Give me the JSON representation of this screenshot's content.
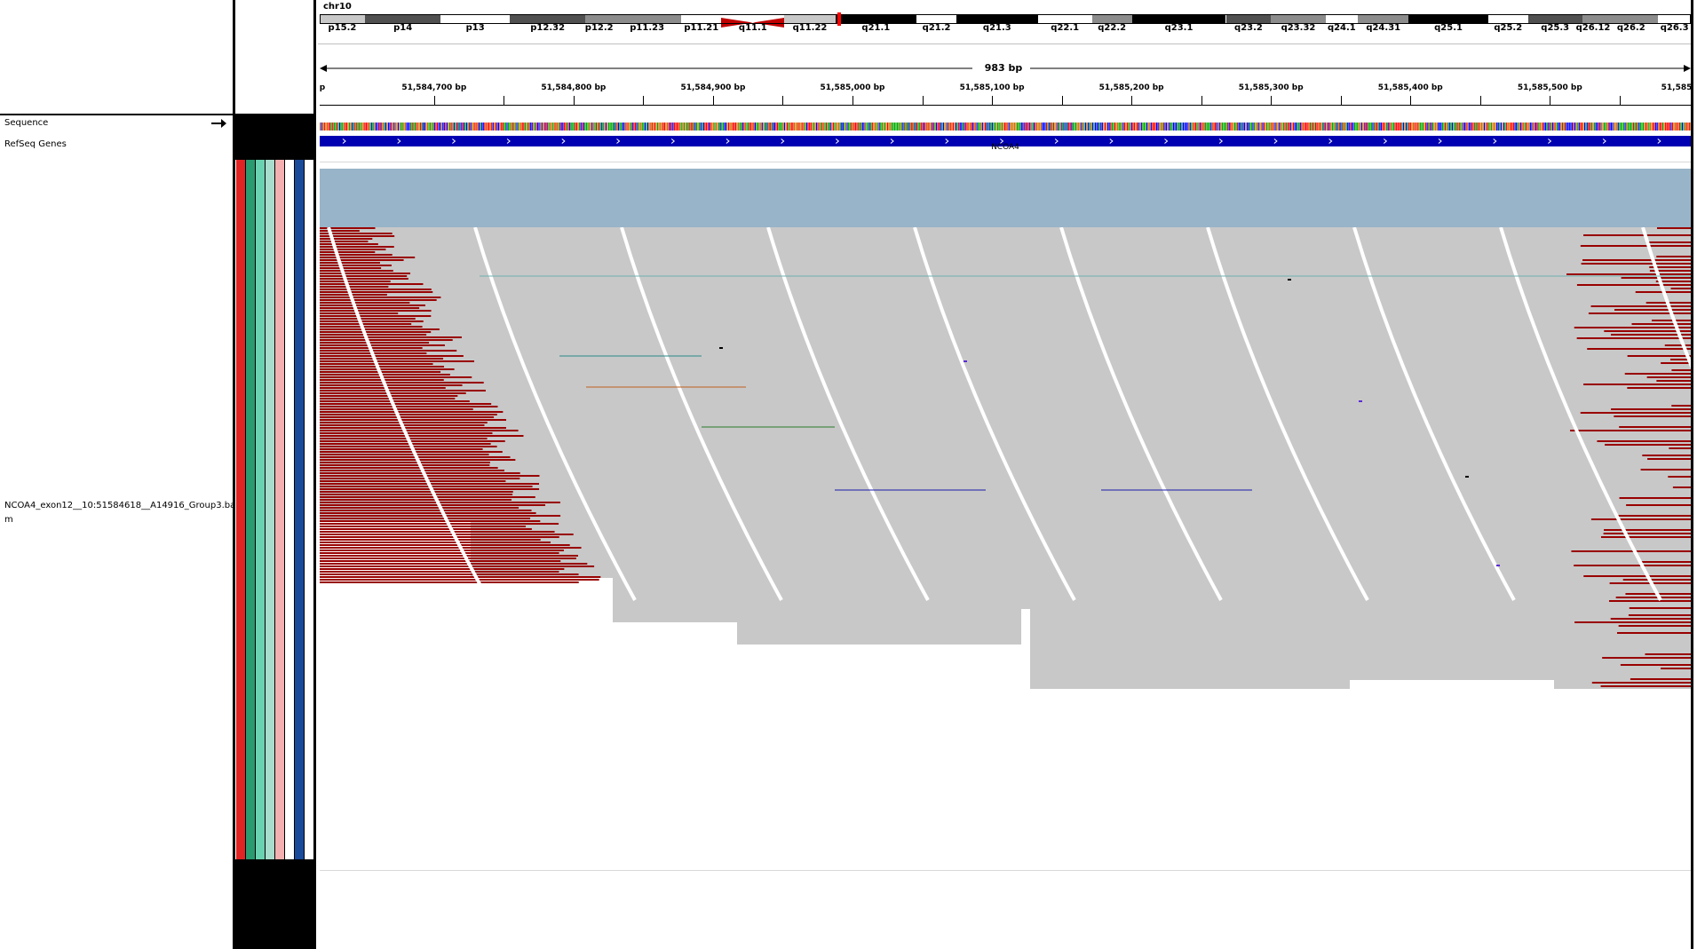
{
  "locus": {
    "chromosome": "chr10",
    "span_label": "983 bp",
    "ruler_start_label": "p",
    "ruler_end_label": "51,585",
    "ruler_ticks": [
      {
        "label": "51,584,700 bp",
        "pos": 51584700
      },
      {
        "label": "51,584,800 bp",
        "pos": 51584800
      },
      {
        "label": "51,584,900 bp",
        "pos": 51584900
      },
      {
        "label": "51,585,000 bp",
        "pos": 51585000
      },
      {
        "label": "51,585,100 bp",
        "pos": 51585100
      },
      {
        "label": "51,585,200 bp",
        "pos": 51585200
      },
      {
        "label": "51,585,300 bp",
        "pos": 51585300
      },
      {
        "label": "51,585,400 bp",
        "pos": 51585400
      },
      {
        "label": "51,585,500 bp",
        "pos": 51585500
      }
    ]
  },
  "ideogram": {
    "bands": [
      {
        "name": "p15.2",
        "stain": "gpos25",
        "show_label": true
      },
      {
        "name": "p14",
        "stain": "gpos75",
        "show_label": true
      },
      {
        "name": "p13",
        "stain": "gneg",
        "show_label": true
      },
      {
        "name": "p12.32",
        "stain": "gpos75",
        "show_label": true
      },
      {
        "name": "p12.2",
        "stain": "gpos50",
        "show_label": true
      },
      {
        "name": "p11.23",
        "stain": "gpos50",
        "show_label": true
      },
      {
        "name": "p11.21",
        "stain": "gneg",
        "show_label": true
      },
      {
        "name": "q11.1",
        "stain": "acen",
        "show_label": true
      },
      {
        "name": "q11.22",
        "stain": "gpos25",
        "show_label": true
      },
      {
        "name": "q21.1",
        "stain": "gpos100",
        "show_label": true
      },
      {
        "name": "q21.2",
        "stain": "gneg",
        "show_label": true
      },
      {
        "name": "q21.3",
        "stain": "gpos100",
        "show_label": true
      },
      {
        "name": "q22.1",
        "stain": "gneg",
        "show_label": true
      },
      {
        "name": "q22.2",
        "stain": "gpos50",
        "show_label": true
      },
      {
        "name": "q23.1",
        "stain": "gpos100",
        "show_label": true
      },
      {
        "name": "q23.2",
        "stain": "gpos75",
        "show_label": true
      },
      {
        "name": "q23.32",
        "stain": "gpos50",
        "show_label": true
      },
      {
        "name": "q24.1",
        "stain": "gneg",
        "show_label": true
      },
      {
        "name": "q24.31",
        "stain": "gpos50",
        "show_label": true
      },
      {
        "name": "q25.1",
        "stain": "gpos100",
        "show_label": true
      },
      {
        "name": "q25.2",
        "stain": "gneg",
        "show_label": true
      },
      {
        "name": "q25.3",
        "stain": "gpos75",
        "show_label": true
      },
      {
        "name": "q26.12",
        "stain": "gpos50",
        "show_label": true
      },
      {
        "name": "q26.2",
        "stain": "gpos50",
        "show_label": true
      },
      {
        "name": "q26.3",
        "stain": "gneg",
        "show_label": true
      }
    ],
    "current_region_color": "#ff0000"
  },
  "tracks": {
    "sequence_label": "Sequence",
    "refseq_label": "RefSeq Genes",
    "gene_name": "NCOA4",
    "gene_color": "#0000b2",
    "alignment_label": "NCOA4_exon12__10:51584618__A14916_Group3.ba\nm",
    "coverage_color": "#98b4c8",
    "read_color": "#c8c8c8",
    "softclip_color": "#990000"
  },
  "attribute_colors": [
    "#e02323",
    "#2a9a70",
    "#6ad2b0",
    "#a8dccc",
    "#f4b0b0",
    "#ffffff",
    "#1a4a9a",
    "#ffffff"
  ],
  "icons": {
    "strand_arrow": "arrow-right-icon"
  }
}
